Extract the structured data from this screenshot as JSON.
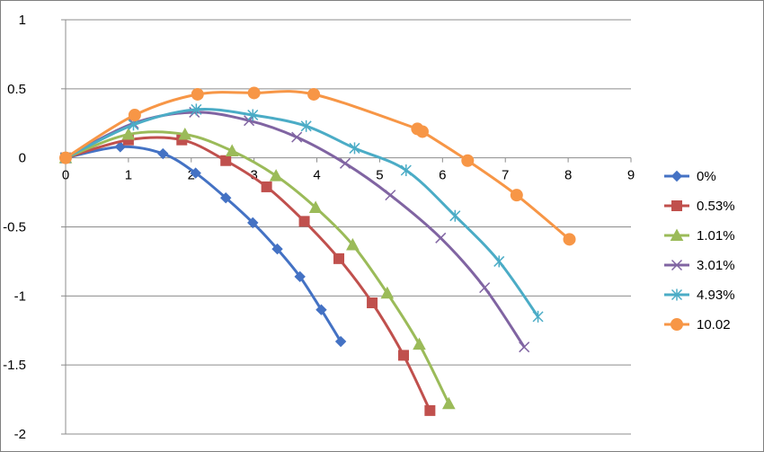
{
  "chart_data": {
    "type": "line",
    "title": "",
    "xlabel": "",
    "ylabel": "",
    "xlim": [
      0,
      9
    ],
    "ylim": [
      -2,
      1
    ],
    "x_ticks": [
      "0",
      "1",
      "2",
      "3",
      "4",
      "5",
      "6",
      "7",
      "8",
      "9"
    ],
    "y_ticks": [
      "1",
      "0.5",
      "0",
      "-0.5",
      "-1",
      "-1.5",
      "-2"
    ],
    "grid": "horizontal",
    "legend_position": "right",
    "series": [
      {
        "name": "0%",
        "color": "#4472C4",
        "marker": "diamond",
        "x": [
          0,
          0.87,
          1.55,
          2.07,
          2.55,
          2.98,
          3.37,
          3.73,
          4.07,
          4.38
        ],
        "y": [
          0,
          0.08,
          0.03,
          -0.11,
          -0.29,
          -0.47,
          -0.66,
          -0.86,
          -1.1,
          -1.33
        ]
      },
      {
        "name": "0.53%",
        "color": "#C0504D",
        "marker": "square",
        "x": [
          0,
          1.0,
          1.85,
          2.55,
          3.2,
          3.8,
          4.35,
          4.88,
          5.38,
          5.8
        ],
        "y": [
          0,
          0.13,
          0.13,
          -0.02,
          -0.21,
          -0.46,
          -0.73,
          -1.05,
          -1.43,
          -1.83
        ]
      },
      {
        "name": "1.01%",
        "color": "#9BBB59",
        "marker": "triangle",
        "x": [
          0,
          1.0,
          1.9,
          2.65,
          3.35,
          3.98,
          4.57,
          5.12,
          5.63,
          6.1
        ],
        "y": [
          0,
          0.17,
          0.17,
          0.05,
          -0.13,
          -0.36,
          -0.63,
          -0.98,
          -1.35,
          -1.78
        ]
      },
      {
        "name": "3.01%",
        "color": "#8064A2",
        "marker": "x",
        "x": [
          0,
          1.08,
          2.05,
          2.92,
          3.68,
          4.45,
          5.17,
          5.97,
          6.67,
          7.3
        ],
        "y": [
          0,
          0.25,
          0.33,
          0.27,
          0.15,
          -0.04,
          -0.27,
          -0.58,
          -0.94,
          -1.37
        ]
      },
      {
        "name": "4.93%",
        "color": "#4BACC6",
        "marker": "star",
        "x": [
          0,
          1.08,
          2.08,
          2.98,
          3.83,
          4.6,
          5.42,
          6.2,
          6.9,
          7.52
        ],
        "y": [
          0,
          0.24,
          0.35,
          0.31,
          0.23,
          0.07,
          -0.09,
          -0.42,
          -0.75,
          -1.15
        ]
      },
      {
        "name": "10.02",
        "color": "#F79646",
        "marker": "circle",
        "x": [
          0,
          1.1,
          2.1,
          3.0,
          3.95,
          5.6,
          5.68,
          6.4,
          7.18,
          8.02
        ],
        "y": [
          0,
          0.31,
          0.46,
          0.47,
          0.46,
          0.21,
          0.19,
          -0.02,
          -0.27,
          -0.59
        ]
      }
    ]
  }
}
